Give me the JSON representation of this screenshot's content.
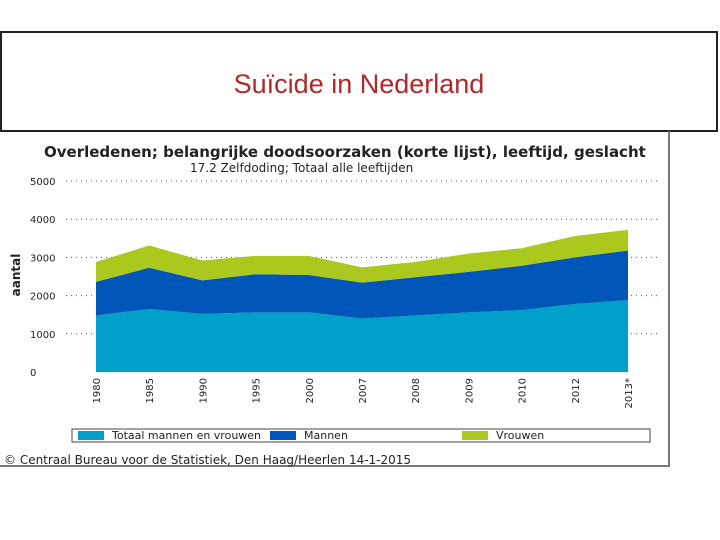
{
  "slide": {
    "title": "Suïcide in Nederland"
  },
  "chart_data": {
    "type": "area",
    "stacked": true,
    "title": "Overledenen; belangrijke doodsoorzaken (korte lijst), leeftijd, geslacht",
    "subtitle": "17.2 Zelfdoding; Totaal alle leeftijden",
    "ylabel": "aantal",
    "xlabel": "",
    "ylim": [
      0,
      5000
    ],
    "yticks": [
      0,
      1000,
      2000,
      3000,
      4000,
      5000
    ],
    "categories": [
      "1980",
      "1985",
      "1990",
      "1995",
      "2000",
      "2007",
      "2008",
      "2009",
      "2010",
      "2012",
      "2013*"
    ],
    "series": [
      {
        "name": "Totaal mannen en vrouwen",
        "color": "#00a0c8",
        "values": [
          1480,
          1650,
          1520,
          1560,
          1560,
          1400,
          1480,
          1560,
          1620,
          1780,
          1880
        ]
      },
      {
        "name": "Mannen",
        "color": "#0055b8",
        "values": [
          880,
          1080,
          880,
          1000,
          980,
          940,
          1000,
          1060,
          1160,
          1220,
          1300
        ]
      },
      {
        "name": "Vrouwen",
        "color": "#aac81e",
        "values": [
          520,
          580,
          520,
          480,
          500,
          400,
          400,
          480,
          460,
          560,
          540
        ]
      }
    ],
    "legend_position": "bottom",
    "source": "© Centraal Bureau voor de Statistiek, Den Haag/Heerlen 14-1-2015"
  }
}
